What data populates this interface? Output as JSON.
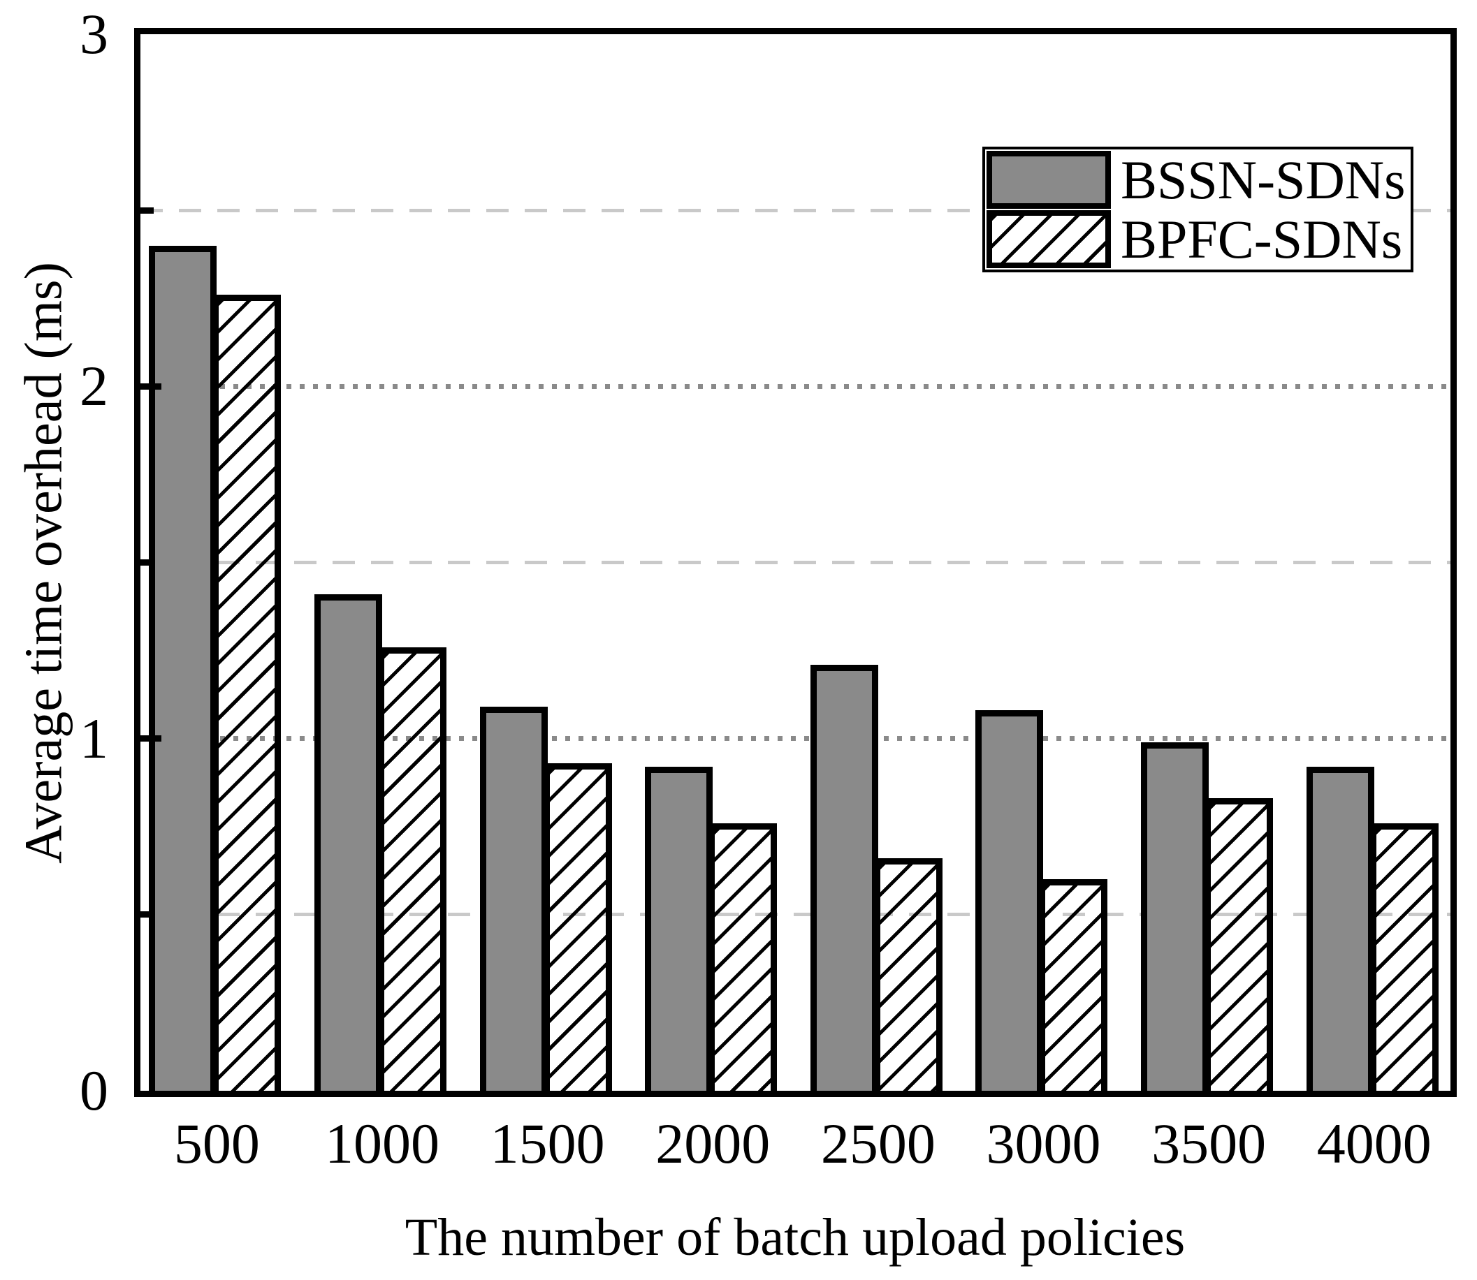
{
  "figure": {
    "background": "#ffffff",
    "bar_fill_color": "#8a8a8a",
    "bar_outline_color": "#000000",
    "hatch_style": "diagonal-forward-slash",
    "gridline_major_color": "#8a8a8a",
    "gridline_minor_color": "#c9c9c9",
    "text_color": "#000000"
  },
  "chart_data": {
    "type": "bar",
    "title": "",
    "xlabel": "The number of batch upload policies",
    "ylabel": "Average time overhead  (ms)",
    "categories": [
      "500",
      "1000",
      "1500",
      "2000",
      "2500",
      "3000",
      "3500",
      "4000"
    ],
    "series": [
      {
        "name": "BSSN-SDNs",
        "style": "solid-gray",
        "values": [
          2.4,
          1.41,
          1.09,
          0.92,
          1.21,
          1.08,
          0.99,
          0.92
        ]
      },
      {
        "name": "BPFC-SDNs",
        "style": "hatched",
        "values": [
          2.26,
          1.26,
          0.93,
          0.76,
          0.66,
          0.6,
          0.83,
          0.76
        ]
      }
    ],
    "ylim": [
      0,
      3
    ],
    "yticks_major": [
      0,
      1,
      2,
      3
    ],
    "yticks_minor": [
      0.5,
      1.5,
      2.5
    ],
    "grid": {
      "major_style": "dotted",
      "minor_style": "dashed",
      "vertical": false
    },
    "legend_position": "top-right"
  },
  "legend": {
    "entries": [
      {
        "label": "BSSN-SDNs",
        "swatch": "solid-gray"
      },
      {
        "label": "BPFC-SDNs",
        "swatch": "hatched"
      }
    ]
  }
}
